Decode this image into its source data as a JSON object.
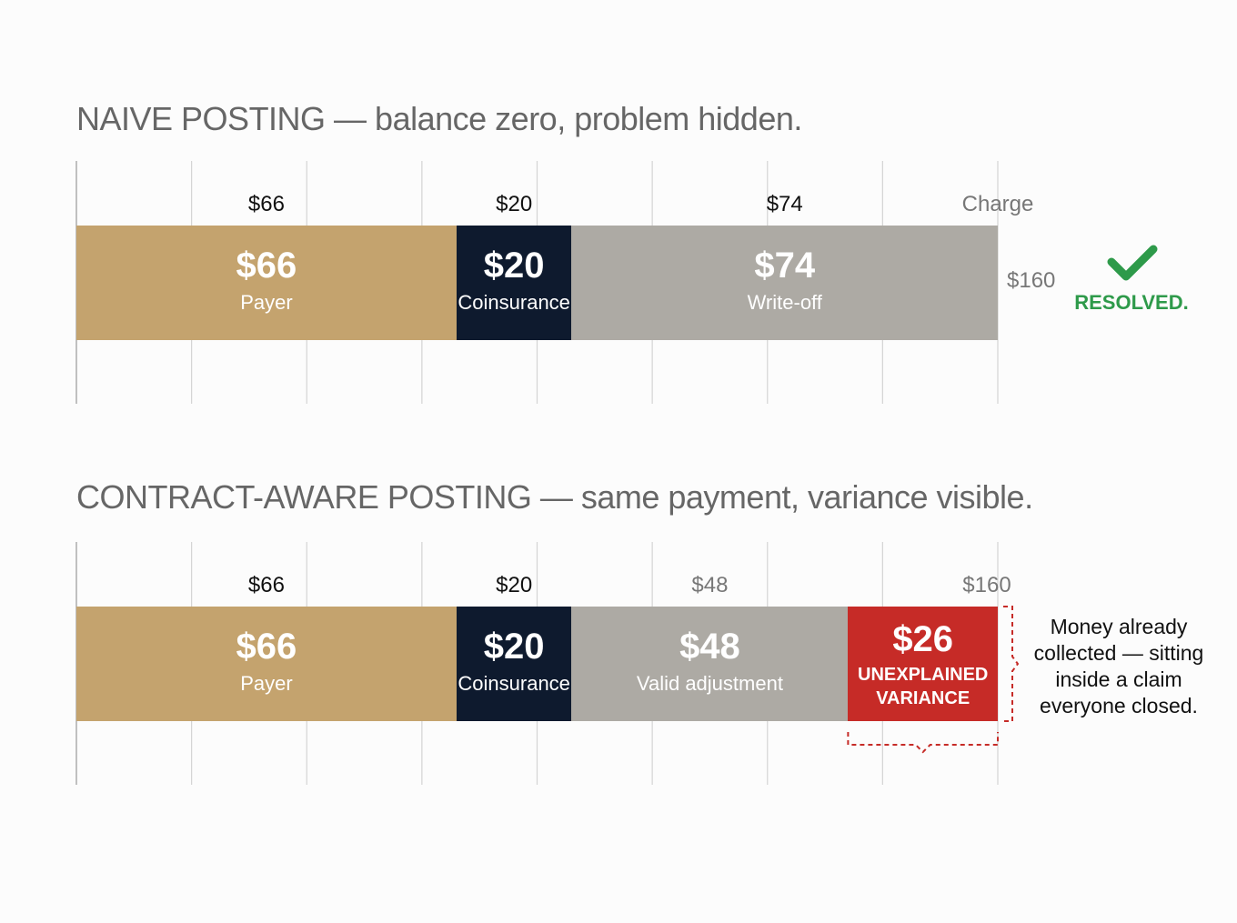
{
  "chart_data": [
    {
      "type": "stacked-bar",
      "title": "NAIVE POSTING — balance zero, problem hidden.",
      "series": [
        {
          "name": "Payer",
          "color": "#c4a36e",
          "label_color": "#111111",
          "values": [
            66
          ],
          "value_labels": [
            "$66"
          ]
        },
        {
          "name": "Coinsurance",
          "color": "#0e1a2e",
          "label_color": "#111111",
          "values": [
            20
          ],
          "value_labels": [
            "$20"
          ]
        },
        {
          "name": "Write-off",
          "color": "#adaaa4",
          "label_color": "#111111",
          "values": [
            74
          ],
          "value_labels": [
            "$74"
          ]
        }
      ],
      "end_label": "Charge",
      "total": 160,
      "total_label": "$160",
      "status": "RESOLVED.",
      "xlim": [
        0,
        160
      ],
      "xticks": [
        0,
        20,
        40,
        60,
        80,
        100,
        120,
        140,
        160
      ],
      "grid": true
    },
    {
      "type": "stacked-bar",
      "title": "CONTRACT-AWARE POSTING — same payment, variance visible.",
      "series": [
        {
          "name": "Payer",
          "color": "#c4a36e",
          "label_color": "#111111",
          "values": [
            66
          ],
          "value_labels": [
            "$66"
          ]
        },
        {
          "name": "Coinsurance",
          "color": "#0e1a2e",
          "label_color": "#111111",
          "values": [
            20
          ],
          "value_labels": [
            "$20"
          ]
        },
        {
          "name": "Valid adjustment",
          "color": "#adaaa4",
          "label_color": "#777777",
          "values": [
            48
          ],
          "value_labels": [
            "$48"
          ]
        },
        {
          "name": "UNEXPLAINED VARIANCE",
          "color": "#c62b27",
          "values": [
            26
          ],
          "value_labels": [
            "$26"
          ]
        }
      ],
      "total": 160,
      "total_label": "$160",
      "annotation": "Money already collected — sitting inside a claim everyone closed.",
      "xlim": [
        0,
        160
      ],
      "xticks": [
        0,
        20,
        40,
        60,
        80,
        100,
        120,
        140,
        160
      ],
      "grid": true
    }
  ]
}
